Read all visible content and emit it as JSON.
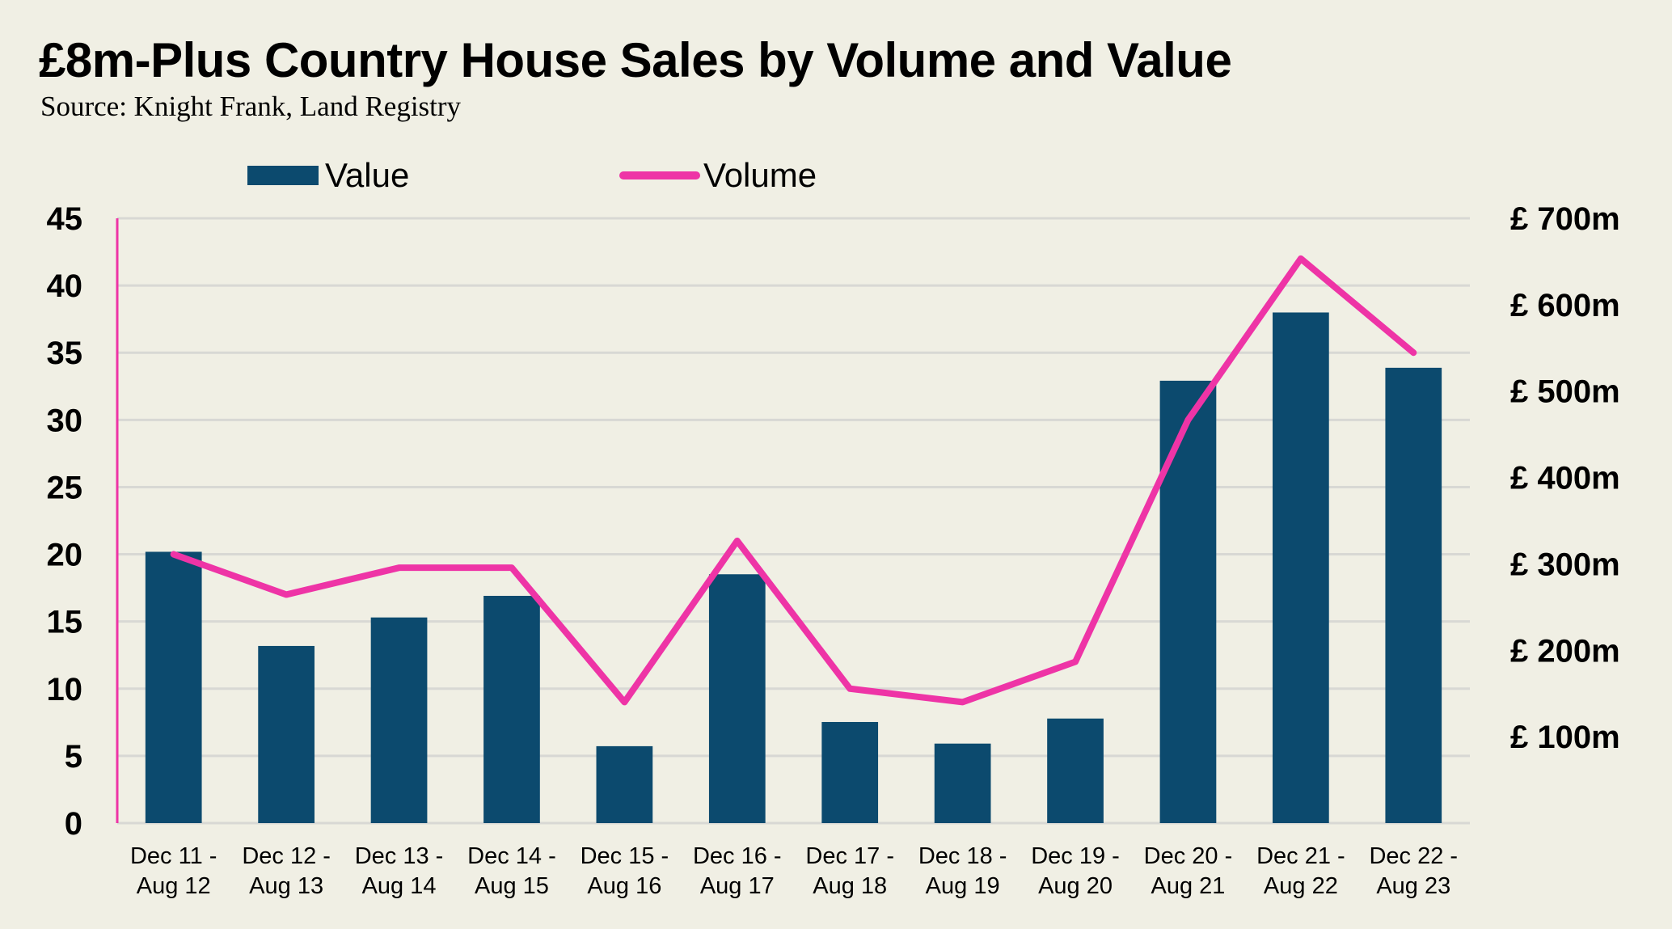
{
  "header": {
    "title": "£8m-Plus Country House Sales by Volume and Value",
    "subtitle": "Source: Knight Frank, Land Registry"
  },
  "colors": {
    "background": "#f0efe4",
    "bar": "#0c4a6e",
    "line": "#ee34a6",
    "grid": "#d8d8d4"
  },
  "chart_data": {
    "type": "bar",
    "combo": "bar + line (dual axis)",
    "title": "£8m-Plus Country House Sales by Volume and Value",
    "subtitle": "Source: Knight Frank, Land Registry",
    "categories": [
      [
        "Dec 11 -",
        "Aug 12"
      ],
      [
        "Dec 12 -",
        "Aug 13"
      ],
      [
        "Dec 13 -",
        "Aug 14"
      ],
      [
        "Dec 14 -",
        "Aug 15"
      ],
      [
        "Dec 15 -",
        "Aug 16"
      ],
      [
        "Dec 16 -",
        "Aug 17"
      ],
      [
        "Dec 17 -",
        "Aug 18"
      ],
      [
        "Dec 18 -",
        "Aug 19"
      ],
      [
        "Dec 19 -",
        "Aug 20"
      ],
      [
        "Dec 20 -",
        "Aug 21"
      ],
      [
        "Dec 21 -",
        "Aug 22"
      ],
      [
        "Dec 22 -",
        "Aug 23"
      ]
    ],
    "series": [
      {
        "name": "Value",
        "type": "bar",
        "axis": "right",
        "unit": "£m",
        "values": [
          314,
          205,
          238,
          263,
          89,
          288,
          117,
          92,
          121,
          512,
          591,
          527
        ]
      },
      {
        "name": "Volume",
        "type": "line",
        "axis": "left",
        "unit": "sales",
        "values": [
          20,
          17,
          19,
          19,
          9,
          21,
          10,
          9,
          12,
          30,
          42,
          35
        ]
      }
    ],
    "left_axis": {
      "label": "",
      "range": [
        0,
        45
      ],
      "ticks": [
        "0",
        "5",
        "10",
        "15",
        "20",
        "25",
        "30",
        "35",
        "40",
        "45"
      ],
      "tick_values": [
        0,
        5,
        10,
        15,
        20,
        25,
        30,
        35,
        40,
        45
      ]
    },
    "right_axis": {
      "label": "",
      "range": [
        0,
        700
      ],
      "ticks": [
        "£ 100m",
        "£ 200m",
        "£ 300m",
        "£ 400m",
        "£ 500m",
        "£ 600m",
        "£ 700m"
      ],
      "tick_values": [
        100,
        200,
        300,
        400,
        500,
        600,
        700
      ]
    },
    "grid": true,
    "legend": {
      "position": "top-center",
      "entries": [
        "Value",
        "Volume"
      ]
    }
  }
}
